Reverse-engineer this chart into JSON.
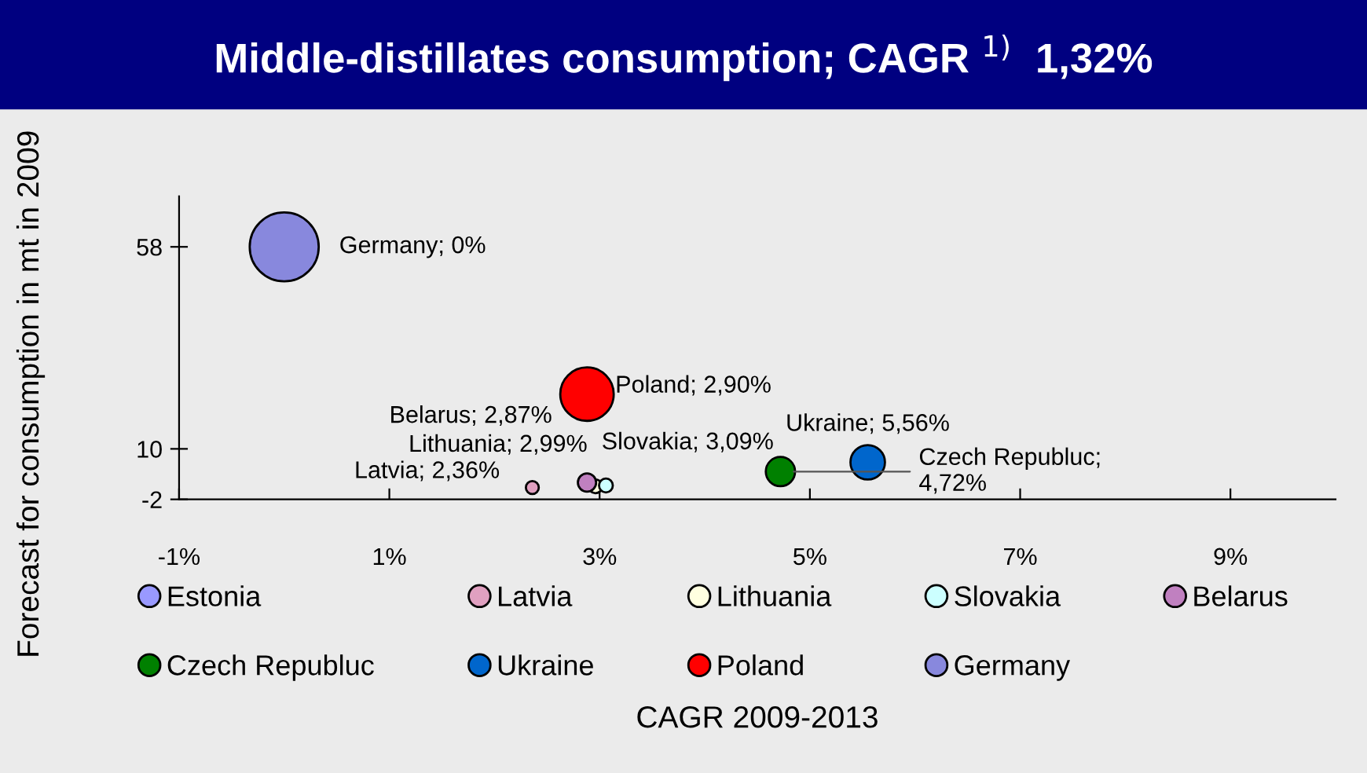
{
  "chart_data": {
    "type": "bubble",
    "title": "Middle-distillates consumption; CAGR $^{1)}$  1,32%",
    "xlabel": "CAGR 2009-2013",
    "ylabel": "Forecast for consumption in mt in 2009",
    "xlim": [
      -1,
      10
    ],
    "xticks": [
      {
        "value": -1,
        "label": "-1%"
      },
      {
        "value": 1,
        "label": "1%"
      },
      {
        "value": 3,
        "label": "3%"
      },
      {
        "value": 5,
        "label": "5%"
      },
      {
        "value": 7,
        "label": "7%"
      },
      {
        "value": 9,
        "label": "9%"
      }
    ],
    "ylim": [
      -2,
      70
    ],
    "yticks": [
      {
        "value": -2,
        "label": "-2"
      },
      {
        "value": 10,
        "label": "10"
      },
      {
        "value": 58,
        "label": "58"
      }
    ],
    "legend": "bottom",
    "grid": false,
    "annotations": [
      {
        "text": "Latvia; 2,36%",
        "x": 2.36,
        "y": 0.8
      },
      {
        "text": "Lithuania; 2,99%",
        "x": 2.96,
        "y": 1.1
      },
      {
        "text": "Slovakia; 3,09%",
        "x": 3.06,
        "y": 1.3
      },
      {
        "text": "Belarus; 2,87%",
        "x": 2.88,
        "y": 2.0
      },
      {
        "text": "Czech Republuc;\n4,72%",
        "x": 4.72,
        "y": 4.6
      },
      {
        "text": "Ukraine; 5,56%",
        "x": 5.55,
        "y": 6.8
      },
      {
        "text": "Poland; 2,90%",
        "x": 2.88,
        "y": 23
      },
      {
        "text": "Germany; 0%",
        "x": 0.0,
        "y": 58
      }
    ],
    "series": [
      {
        "name": "Estonia",
        "color": "#9999ff",
        "x": [
          null
        ],
        "values": [
          null
        ],
        "sizes": [
          null
        ]
      },
      {
        "name": "Latvia",
        "color": "#e0a0c0",
        "x": [
          2.36
        ],
        "values": [
          0.8
        ],
        "sizes": [
          0.035
        ]
      },
      {
        "name": "Lithuania",
        "color": "#ffffe0",
        "x": [
          2.96
        ],
        "values": [
          1.1
        ],
        "sizes": [
          0.04
        ]
      },
      {
        "name": "Slovakia",
        "color": "#ccffff",
        "x": [
          3.06
        ],
        "values": [
          1.3
        ],
        "sizes": [
          0.04
        ]
      },
      {
        "name": "Belarus",
        "color": "#c080c0",
        "x": [
          2.88
        ],
        "values": [
          2.0
        ],
        "sizes": [
          0.07
        ]
      },
      {
        "name": "Czech Republuc",
        "color": "#008000",
        "x": [
          4.72
        ],
        "values": [
          4.6
        ],
        "sizes": [
          0.18
        ]
      },
      {
        "name": "Ukraine",
        "color": "#0066cc",
        "x": [
          5.55
        ],
        "values": [
          6.8
        ],
        "sizes": [
          0.25
        ]
      },
      {
        "name": "Poland",
        "color": "#ff0000",
        "x": [
          2.88
        ],
        "values": [
          23
        ],
        "sizes": [
          0.6
        ]
      },
      {
        "name": "Germany",
        "color": "#8888dd",
        "x": [
          0.0
        ],
        "values": [
          58
        ],
        "sizes": [
          1
        ]
      }
    ]
  }
}
